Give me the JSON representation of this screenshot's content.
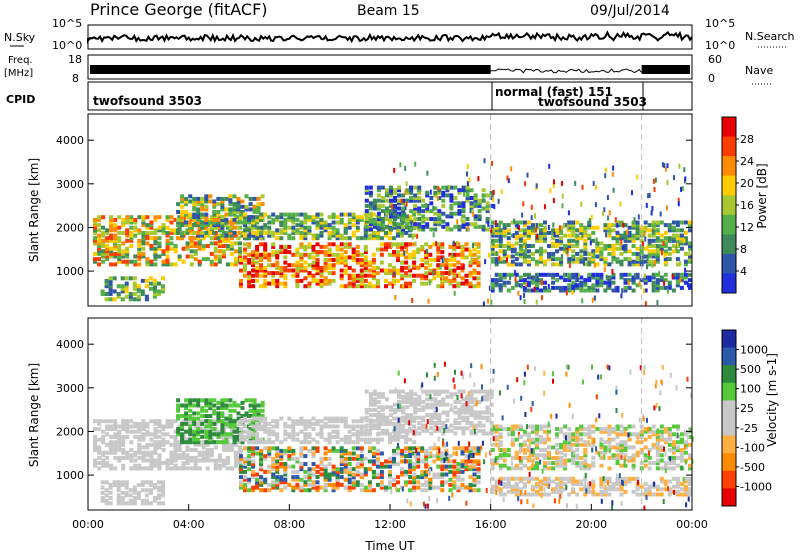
{
  "header": {
    "station": "Prince George (fitACF)",
    "beam": "Beam 15",
    "date": "09/Jul/2014"
  },
  "top_panels": {
    "nsky_label": "N.Sky",
    "nsky_ticks": [
      "10^5",
      "10^0"
    ],
    "nsearch_label": "N.Search",
    "nsearch_ticks": [
      "10^5",
      "10^0"
    ],
    "freq_label_1": "Freq.",
    "freq_label_2": "[MHz]",
    "freq_ticks": [
      "18",
      "8"
    ],
    "nave_label": "Nave",
    "nave_ticks": [
      "60",
      "0"
    ],
    "cpid_label": "CPID",
    "cpid_segments": [
      "twofsound 3503",
      "normal (fast) 151",
      "twofsound 3503"
    ]
  },
  "colors": {
    "power_scale": [
      "#1f2fdc",
      "#2f55a8",
      "#3f8a5a",
      "#56b04a",
      "#a8c832",
      "#ffcc00",
      "#ff8c00",
      "#ff3c00",
      "#e60000"
    ],
    "velocity_scale": [
      "#e60000",
      "#ff4000",
      "#ff8c00",
      "#ffb040",
      "#c8c8c8",
      "#c8c8c8",
      "#56c83c",
      "#2e8a3c",
      "#2a5aa8",
      "#1e2aa0"
    ]
  },
  "chart_data": [
    {
      "type": "heatmap",
      "name": "power",
      "ylabel": "Slant Range [km]",
      "yticks": [
        "1000",
        "2000",
        "3000",
        "4000"
      ],
      "ylim": [
        200,
        4600
      ],
      "xlim_hours": [
        0,
        24
      ],
      "colorbar_label": "Power [dB]",
      "colorbar_ticks": [
        "4",
        "8",
        "12",
        "16",
        "20",
        "24",
        "28"
      ],
      "color_range": [
        0,
        32
      ],
      "mode_change_times": [
        "16:00",
        "22:00"
      ]
    },
    {
      "type": "heatmap",
      "name": "velocity",
      "ylabel": "Slant Range [km]",
      "yticks": [
        "1000",
        "2000",
        "3000",
        "4000"
      ],
      "ylim": [
        200,
        4600
      ],
      "xlim_hours": [
        0,
        24
      ],
      "colorbar_label": "Velocity [m s-1]",
      "colorbar_ticks": [
        "1000",
        "500",
        "100",
        "25",
        "-25",
        "-100",
        "-500",
        "-1000"
      ],
      "mode_change_times": [
        "16:00",
        "22:00"
      ]
    }
  ],
  "xaxis": {
    "ticks": [
      "00:00",
      "04:00",
      "08:00",
      "12:00",
      "16:00",
      "20:00",
      "00:00"
    ],
    "label": "Time UT"
  }
}
